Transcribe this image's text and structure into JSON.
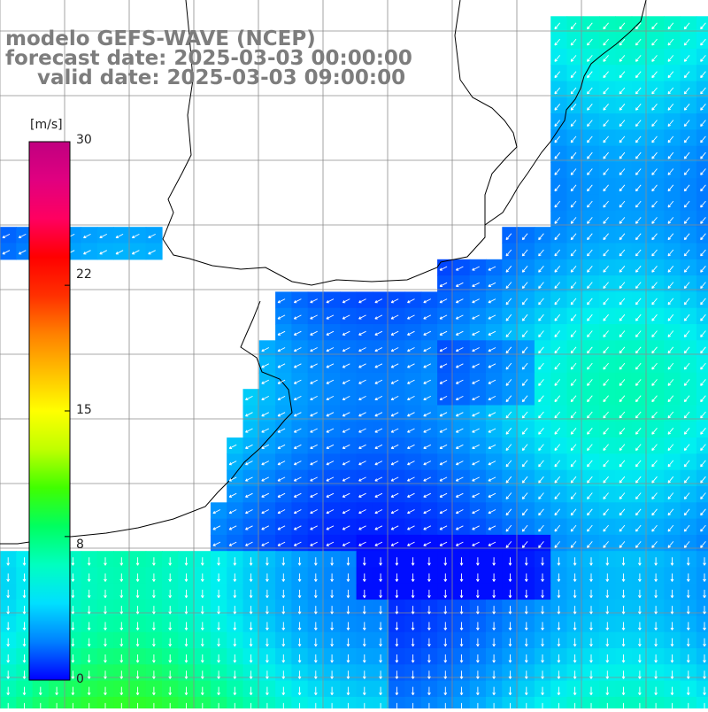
{
  "title": {
    "line1": "modelo GEFS-WAVE (NCEP)",
    "line2": "forecast date: 2025-03-03 00:00:00",
    "line3": "valid date: 2025-03-03 09:00:00"
  },
  "colorbar": {
    "unit": "[m/s]",
    "ticks": [
      "30",
      "22",
      "15",
      "8",
      "0"
    ],
    "tick_values": [
      30,
      22,
      15,
      8,
      0
    ],
    "min": 0,
    "max": 30,
    "colors": [
      "#0000ff",
      "#0080ff",
      "#00e0ff",
      "#00ffc0",
      "#00ff60",
      "#40ff00",
      "#c0ff00",
      "#ffff00",
      "#ffc000",
      "#ff8000",
      "#ff3000",
      "#ff0000",
      "#ff0060",
      "#e00080",
      "#c00080"
    ]
  },
  "map": {
    "variable": "wind speed (m/s) with direction arrows",
    "land_color": "#ffffff",
    "grid_color": "#808080"
  },
  "legend_markers": [
    "wind-speed-colorbar",
    "wind-direction-arrows"
  ]
}
